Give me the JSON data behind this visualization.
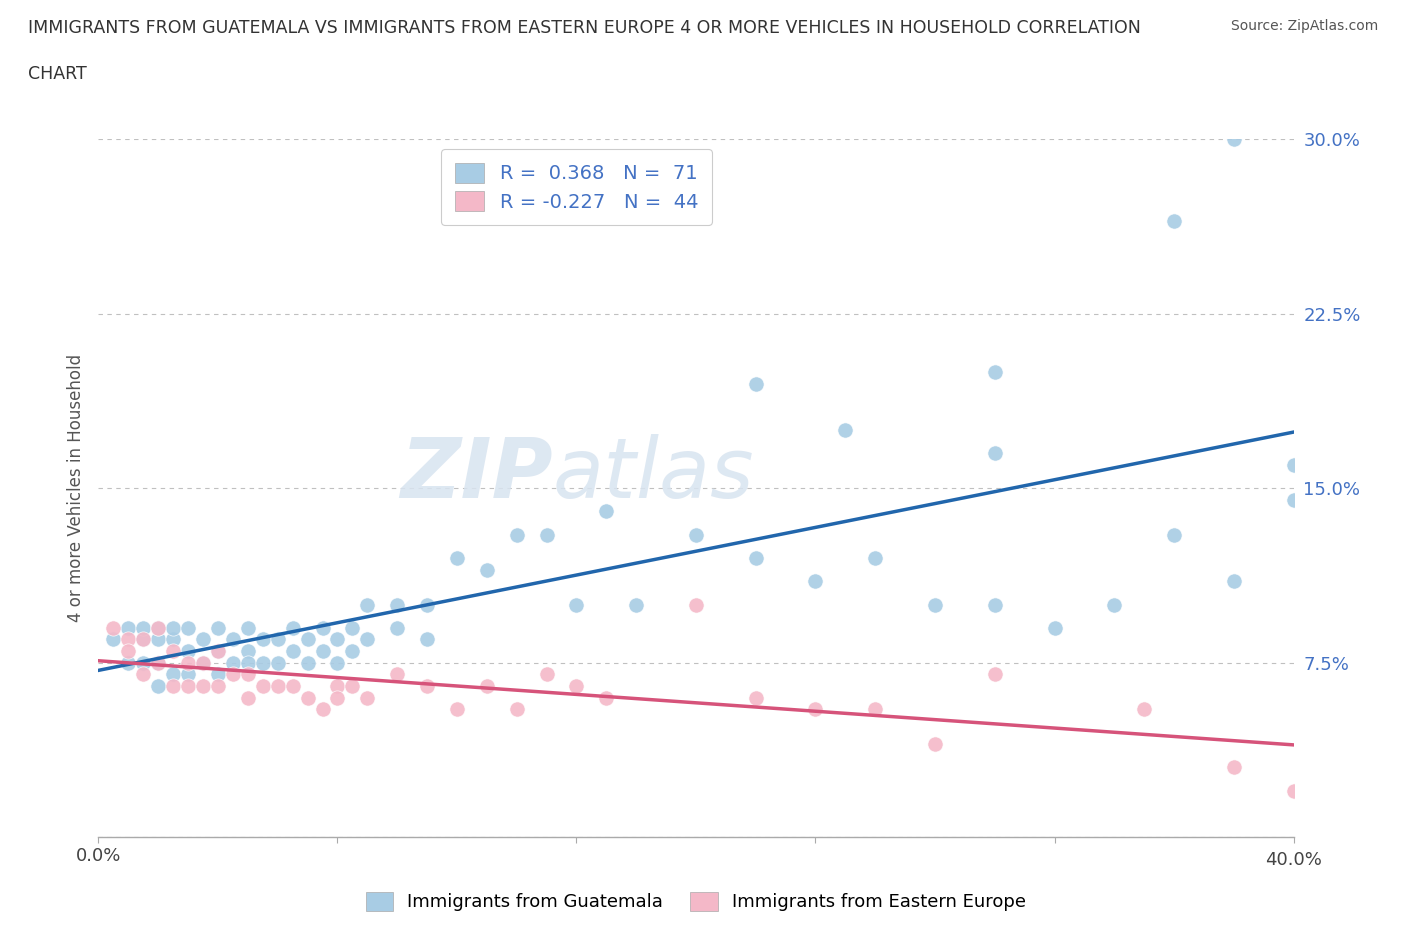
{
  "title_line1": "IMMIGRANTS FROM GUATEMALA VS IMMIGRANTS FROM EASTERN EUROPE 4 OR MORE VEHICLES IN HOUSEHOLD CORRELATION",
  "title_line2": "CHART",
  "source": "Source: ZipAtlas.com",
  "ylabel": "4 or more Vehicles in Household",
  "xlim": [
    0.0,
    0.4
  ],
  "ylim": [
    0.0,
    0.3
  ],
  "xticks": [
    0.0,
    0.08,
    0.16,
    0.24,
    0.32,
    0.4
  ],
  "yticks": [
    0.0,
    0.075,
    0.15,
    0.225,
    0.3
  ],
  "legend_label_blue": "Immigrants from Guatemala",
  "legend_label_pink": "Immigrants from Eastern Europe",
  "R_blue": 0.368,
  "N_blue": 71,
  "R_pink": -0.227,
  "N_pink": 44,
  "blue_color": "#a8cce4",
  "pink_color": "#f4b8c8",
  "blue_line_color": "#2166ac",
  "pink_line_color": "#d6537a",
  "watermark_zip": "ZIP",
  "watermark_atlas": "atlas",
  "blue_x": [
    0.005,
    0.01,
    0.01,
    0.015,
    0.015,
    0.015,
    0.02,
    0.02,
    0.02,
    0.02,
    0.025,
    0.025,
    0.025,
    0.03,
    0.03,
    0.03,
    0.035,
    0.035,
    0.04,
    0.04,
    0.04,
    0.045,
    0.045,
    0.05,
    0.05,
    0.05,
    0.055,
    0.055,
    0.06,
    0.06,
    0.065,
    0.065,
    0.07,
    0.07,
    0.075,
    0.075,
    0.08,
    0.08,
    0.085,
    0.085,
    0.09,
    0.09,
    0.1,
    0.1,
    0.11,
    0.11,
    0.12,
    0.13,
    0.14,
    0.15,
    0.16,
    0.17,
    0.18,
    0.2,
    0.22,
    0.24,
    0.26,
    0.28,
    0.3,
    0.32,
    0.34,
    0.36,
    0.38,
    0.4,
    0.22,
    0.3,
    0.36,
    0.38,
    0.4,
    0.25,
    0.3
  ],
  "blue_y": [
    0.085,
    0.09,
    0.075,
    0.085,
    0.09,
    0.075,
    0.085,
    0.09,
    0.075,
    0.065,
    0.085,
    0.07,
    0.09,
    0.08,
    0.09,
    0.07,
    0.085,
    0.075,
    0.08,
    0.09,
    0.07,
    0.085,
    0.075,
    0.08,
    0.09,
    0.075,
    0.085,
    0.075,
    0.085,
    0.075,
    0.09,
    0.08,
    0.085,
    0.075,
    0.09,
    0.08,
    0.085,
    0.075,
    0.09,
    0.08,
    0.085,
    0.1,
    0.1,
    0.09,
    0.1,
    0.085,
    0.12,
    0.115,
    0.13,
    0.13,
    0.1,
    0.14,
    0.1,
    0.13,
    0.12,
    0.11,
    0.12,
    0.1,
    0.1,
    0.09,
    0.1,
    0.13,
    0.11,
    0.145,
    0.195,
    0.2,
    0.265,
    0.3,
    0.16,
    0.175,
    0.165
  ],
  "pink_x": [
    0.005,
    0.01,
    0.01,
    0.015,
    0.015,
    0.02,
    0.02,
    0.025,
    0.025,
    0.03,
    0.03,
    0.035,
    0.035,
    0.04,
    0.04,
    0.045,
    0.05,
    0.05,
    0.055,
    0.06,
    0.065,
    0.07,
    0.075,
    0.08,
    0.08,
    0.085,
    0.09,
    0.1,
    0.11,
    0.12,
    0.13,
    0.14,
    0.15,
    0.16,
    0.17,
    0.2,
    0.22,
    0.24,
    0.26,
    0.28,
    0.3,
    0.35,
    0.38,
    0.4
  ],
  "pink_y": [
    0.09,
    0.085,
    0.08,
    0.085,
    0.07,
    0.09,
    0.075,
    0.08,
    0.065,
    0.075,
    0.065,
    0.075,
    0.065,
    0.08,
    0.065,
    0.07,
    0.07,
    0.06,
    0.065,
    0.065,
    0.065,
    0.06,
    0.055,
    0.065,
    0.06,
    0.065,
    0.06,
    0.07,
    0.065,
    0.055,
    0.065,
    0.055,
    0.07,
    0.065,
    0.06,
    0.1,
    0.06,
    0.055,
    0.055,
    0.04,
    0.07,
    0.055,
    0.03,
    0.02
  ]
}
